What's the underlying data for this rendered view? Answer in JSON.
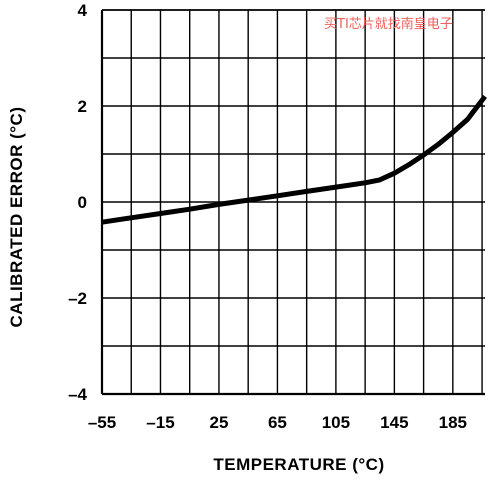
{
  "watermark": "买TI芯片就找南皇电子",
  "chart_data": {
    "type": "line",
    "xlabel": "TEMPERATURE (°C)",
    "ylabel": "CALIBRATED ERROR (°C)",
    "xlim": [
      -55,
      207
    ],
    "ylim": [
      -4,
      4
    ],
    "x_ticks": [
      -55,
      -15,
      25,
      65,
      105,
      145,
      185
    ],
    "x_tick_labels": [
      "–55",
      "–15",
      "25",
      "65",
      "105",
      "145",
      "185"
    ],
    "y_ticks": [
      4,
      2,
      0,
      -2,
      -4
    ],
    "y_tick_labels": [
      "4",
      "2",
      "0",
      "–2",
      "–4"
    ],
    "x_grid_step": 20,
    "y_grid_step": 1,
    "grid": true,
    "series": [
      {
        "x": [
          -55,
          -35,
          -15,
          5,
          25,
          45,
          65,
          85,
          105,
          125,
          135,
          145,
          155,
          165,
          175,
          185,
          195,
          200,
          207
        ],
        "y": [
          -0.42,
          -0.33,
          -0.24,
          -0.15,
          -0.05,
          0.04,
          0.13,
          0.22,
          0.31,
          0.4,
          0.46,
          0.6,
          0.78,
          0.98,
          1.2,
          1.45,
          1.72,
          1.92,
          2.2
        ]
      }
    ]
  }
}
